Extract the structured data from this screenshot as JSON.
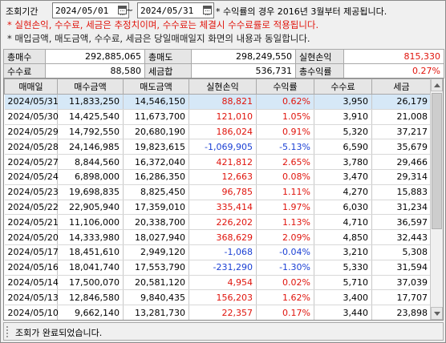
{
  "filter": {
    "label": "조회기간",
    "start_date": "2024/05/01",
    "end_date": "2024/05/31",
    "separator": "~",
    "note": "* 수익률의 경우 2016년 3월부터 제공됩니다."
  },
  "notes": {
    "line1": "* 실현손익, 수수료, 세금은 추정치이며, 수수료는 체결시 수수료률로 적용됩니다.",
    "line2": "* 매입금액, 매도금액, 수수료, 세금은 당일매매일지 화면의 내용과 동일합니다."
  },
  "summary": {
    "total_buy_label": "총매수",
    "total_buy": "292,885,065",
    "total_sell_label": "총매도",
    "total_sell": "298,249,550",
    "realized_label": "실현손익",
    "realized": "815,330",
    "fee_label": "수수료",
    "fee": "88,580",
    "tax_label": "세금합",
    "tax": "536,731",
    "return_label": "총수익률",
    "return": "0.27%"
  },
  "grid": {
    "headers": [
      "매매일",
      "매수금액",
      "매도금액",
      "실현손익",
      "수익률",
      "수수료",
      "세금"
    ],
    "rows": [
      {
        "date": "2024/05/31",
        "buy": "11,833,250",
        "sell": "14,546,150",
        "pnl": "88,821",
        "ret": "0.62%",
        "fee": "3,950",
        "tax": "26,179",
        "sign": "pos"
      },
      {
        "date": "2024/05/30",
        "buy": "14,425,540",
        "sell": "11,673,700",
        "pnl": "121,010",
        "ret": "1.05%",
        "fee": "3,910",
        "tax": "21,008",
        "sign": "pos"
      },
      {
        "date": "2024/05/29",
        "buy": "14,792,550",
        "sell": "20,680,190",
        "pnl": "186,024",
        "ret": "0.91%",
        "fee": "5,320",
        "tax": "37,217",
        "sign": "pos"
      },
      {
        "date": "2024/05/28",
        "buy": "24,146,985",
        "sell": "19,823,615",
        "pnl": "-1,069,905",
        "ret": "-5.13%",
        "fee": "6,590",
        "tax": "35,679",
        "sign": "neg"
      },
      {
        "date": "2024/05/27",
        "buy": "8,844,560",
        "sell": "16,372,040",
        "pnl": "421,812",
        "ret": "2.65%",
        "fee": "3,780",
        "tax": "29,466",
        "sign": "pos"
      },
      {
        "date": "2024/05/24",
        "buy": "6,898,000",
        "sell": "16,286,350",
        "pnl": "12,663",
        "ret": "0.08%",
        "fee": "3,470",
        "tax": "29,314",
        "sign": "pos"
      },
      {
        "date": "2024/05/23",
        "buy": "19,698,835",
        "sell": "8,825,450",
        "pnl": "96,785",
        "ret": "1.11%",
        "fee": "4,270",
        "tax": "15,883",
        "sign": "pos"
      },
      {
        "date": "2024/05/22",
        "buy": "22,905,940",
        "sell": "17,359,010",
        "pnl": "335,414",
        "ret": "1.97%",
        "fee": "6,030",
        "tax": "31,234",
        "sign": "pos"
      },
      {
        "date": "2024/05/21",
        "buy": "11,106,000",
        "sell": "20,338,700",
        "pnl": "226,202",
        "ret": "1.13%",
        "fee": "4,710",
        "tax": "36,597",
        "sign": "pos"
      },
      {
        "date": "2024/05/20",
        "buy": "14,333,980",
        "sell": "18,027,940",
        "pnl": "368,629",
        "ret": "2.09%",
        "fee": "4,850",
        "tax": "32,443",
        "sign": "pos"
      },
      {
        "date": "2024/05/17",
        "buy": "18,451,610",
        "sell": "2,949,120",
        "pnl": "-1,068",
        "ret": "-0.04%",
        "fee": "3,210",
        "tax": "5,308",
        "sign": "neg"
      },
      {
        "date": "2024/05/16",
        "buy": "18,041,740",
        "sell": "17,553,790",
        "pnl": "-231,290",
        "ret": "-1.30%",
        "fee": "5,330",
        "tax": "31,594",
        "sign": "neg"
      },
      {
        "date": "2024/05/14",
        "buy": "17,500,070",
        "sell": "20,581,120",
        "pnl": "4,954",
        "ret": "0.02%",
        "fee": "5,710",
        "tax": "37,039",
        "sign": "pos"
      },
      {
        "date": "2024/05/13",
        "buy": "12,846,580",
        "sell": "9,840,435",
        "pnl": "156,203",
        "ret": "1.62%",
        "fee": "3,400",
        "tax": "17,707",
        "sign": "pos"
      },
      {
        "date": "2024/05/10",
        "buy": "9,662,140",
        "sell": "13,281,730",
        "pnl": "22,357",
        "ret": "0.17%",
        "fee": "3,440",
        "tax": "23,898",
        "sign": "pos"
      }
    ]
  },
  "status": {
    "text": "조회가 완료되었습니다."
  },
  "colors": {
    "positive": "#e0140c",
    "negative": "#1a3fd4",
    "selected_row": "#d6e8f7"
  }
}
